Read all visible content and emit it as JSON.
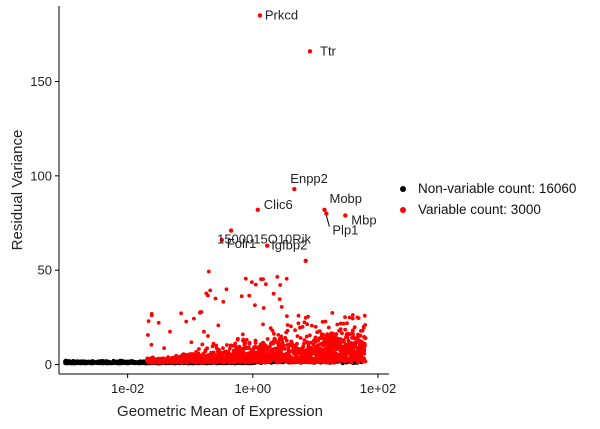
{
  "chart_data": {
    "type": "scatter",
    "title": "",
    "xlabel": "Geometric Mean of Expression",
    "ylabel": "Residual Variance",
    "xscale": "log10",
    "xlim": [
      0.0008,
      150
    ],
    "ylim": [
      -5,
      190
    ],
    "xticks": [
      0.01,
      1,
      100
    ],
    "xtick_labels": [
      "1e-02",
      "1e+00",
      "1e+02"
    ],
    "yticks": [
      0,
      50,
      100,
      150
    ],
    "ytick_labels": [
      "0",
      "50",
      "100",
      "150"
    ],
    "grid": false,
    "legend_position": "right",
    "series": [
      {
        "name": "Non-variable count: 16060",
        "color": "#000000"
      },
      {
        "name": "Variable count: 3000",
        "color": "#ff0000"
      }
    ],
    "labeled_points": [
      {
        "label": "Prkcd",
        "x": 1.3,
        "y": 185
      },
      {
        "label": "Ttr",
        "x": 8.2,
        "y": 166
      },
      {
        "label": "Enpp2",
        "x": 4.6,
        "y": 93
      },
      {
        "label": "Mobp",
        "x": 14,
        "y": 82
      },
      {
        "label": "Mbp",
        "x": 30,
        "y": 79
      },
      {
        "label": "Plp1",
        "x": 15,
        "y": 80
      },
      {
        "label": "Clic6",
        "x": 1.2,
        "y": 82
      },
      {
        "label": "1500015O10Rik",
        "x": 0.45,
        "y": 71
      },
      {
        "label": "Folr1",
        "x": 0.32,
        "y": 66
      },
      {
        "label": "Igfbp2",
        "x": 1.7,
        "y": 63
      },
      {
        "label": "",
        "x": 7.0,
        "y": 55
      }
    ]
  }
}
